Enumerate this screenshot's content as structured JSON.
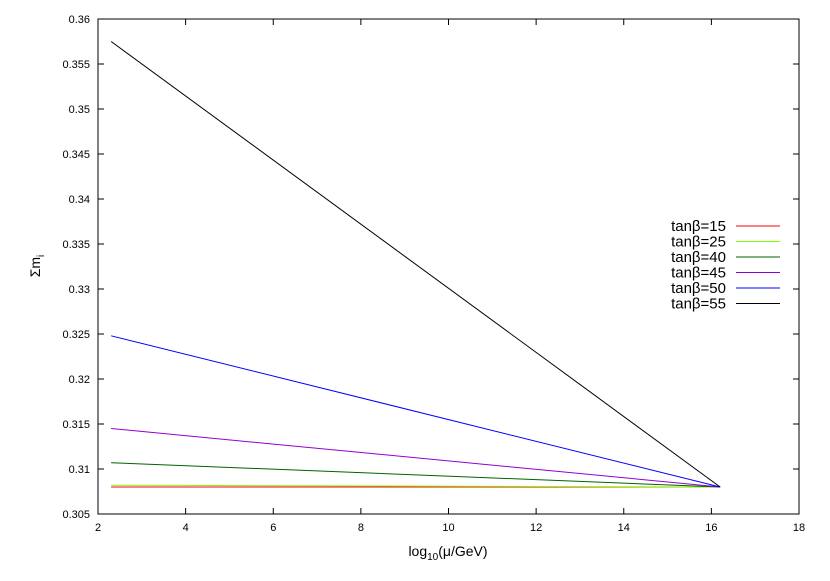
{
  "chart_data": {
    "type": "line",
    "title": "",
    "xlabel": {
      "base": "log",
      "sub": "10",
      "rest": "(μ/GeV)"
    },
    "ylabel": {
      "base": "Σm",
      "sub": "i"
    },
    "xlim": [
      2,
      18
    ],
    "ylim": [
      0.305,
      0.36
    ],
    "x_ticks": [
      2,
      4,
      6,
      8,
      10,
      12,
      14,
      16,
      18
    ],
    "x_tick_labels": [
      "2",
      "4",
      "6",
      "8",
      "10",
      "12",
      "14",
      "16",
      "18"
    ],
    "y_ticks": [
      0.305,
      0.31,
      0.315,
      0.32,
      0.325,
      0.33,
      0.335,
      0.34,
      0.345,
      0.35,
      0.355,
      0.36
    ],
    "y_tick_labels": [
      "0.305",
      "0.31",
      "0.315",
      "0.32",
      "0.325",
      "0.33",
      "0.335",
      "0.34",
      "0.345",
      "0.35",
      "0.355",
      "0.36"
    ],
    "grid": false,
    "legend_position": "right",
    "series": [
      {
        "name": "tanβ=15",
        "color": "#ff0000",
        "x": [
          2.3,
          16.2
        ],
        "y": [
          0.308,
          0.308
        ]
      },
      {
        "name": "tanβ=25",
        "color": "#7fff00",
        "x": [
          2.3,
          16.2
        ],
        "y": [
          0.3082,
          0.308
        ]
      },
      {
        "name": "tanβ=40",
        "color": "#006400",
        "x": [
          2.3,
          16.2
        ],
        "y": [
          0.3107,
          0.308
        ]
      },
      {
        "name": "tanβ=45",
        "color": "#9400d3",
        "x": [
          2.3,
          16.2
        ],
        "y": [
          0.3145,
          0.308
        ]
      },
      {
        "name": "tanβ=50",
        "color": "#0000ff",
        "x": [
          2.3,
          16.2
        ],
        "y": [
          0.3248,
          0.308
        ]
      },
      {
        "name": "tanβ=55",
        "color": "#000000",
        "x": [
          2.3,
          16.2
        ],
        "y": [
          0.3575,
          0.308
        ]
      }
    ]
  }
}
